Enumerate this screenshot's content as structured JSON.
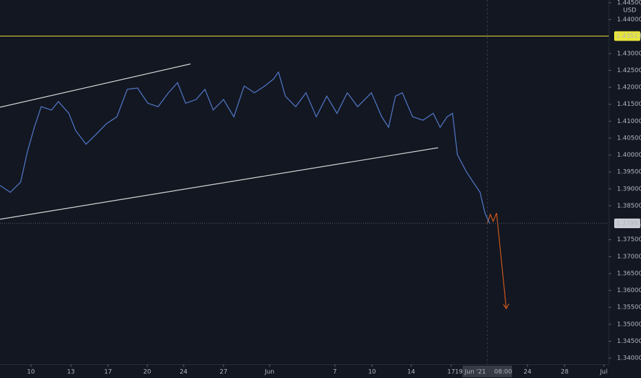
{
  "chart_data": {
    "type": "line",
    "currency": "USD",
    "x": [
      0,
      0.81,
      1.62,
      2.16,
      2.7,
      3.24,
      4.05,
      4.59,
      5.41,
      5.95,
      6.76,
      7.57,
      8.38,
      9.19,
      10.0,
      10.81,
      11.62,
      12.43,
      13.24,
      13.95,
      14.59,
      15.41,
      16.11,
      16.76,
      17.57,
      18.38,
      19.19,
      20.0,
      20.81,
      21.51,
      21.89,
      22.43,
      23.24,
      24.05,
      24.86,
      25.68,
      26.49,
      27.3,
      28.11,
      29.19,
      30.0,
      30.54,
      31.08,
      31.62,
      32.43,
      33.24,
      34.05,
      34.59,
      35.14,
      35.57,
      35.95,
      36.65,
      37.19,
      37.73,
      38.11,
      38.49
    ],
    "series": [
      {
        "color": "#4f75c2",
        "values": [
          1.391,
          1.389,
          1.392,
          1.4011,
          1.4082,
          1.4143,
          1.4133,
          1.4158,
          1.4123,
          1.4072,
          1.4032,
          1.4062,
          1.4093,
          1.4113,
          1.4194,
          1.4198,
          1.4153,
          1.4143,
          1.4184,
          1.4214,
          1.4153,
          1.4164,
          1.4194,
          1.4133,
          1.4164,
          1.4113,
          1.4204,
          1.4184,
          1.4204,
          1.4225,
          1.4245,
          1.4174,
          1.4143,
          1.4184,
          1.4113,
          1.4174,
          1.4123,
          1.4184,
          1.4143,
          1.4184,
          1.4113,
          1.4082,
          1.4174,
          1.4184,
          1.4113,
          1.4103,
          1.4123,
          1.4082,
          1.4113,
          1.4123,
          1.4001,
          1.3951,
          1.392,
          1.389,
          1.3829,
          1.3798
        ]
      }
    ],
    "xlim": [
      0,
      47.84
    ],
    "xticks": [
      {
        "value": 2.43,
        "label": "10"
      },
      {
        "value": 5.57,
        "label": "13"
      },
      {
        "value": 8.49,
        "label": "17"
      },
      {
        "value": 11.57,
        "label": "20"
      },
      {
        "value": 14.43,
        "label": "24"
      },
      {
        "value": 17.57,
        "label": "27"
      },
      {
        "value": 21.19,
        "label": "Jun"
      },
      {
        "value": 26.32,
        "label": "7"
      },
      {
        "value": 29.24,
        "label": "10"
      },
      {
        "value": 32.32,
        "label": "14"
      },
      {
        "value": 35.46,
        "label": "17"
      },
      {
        "value": 41.46,
        "label": "24"
      },
      {
        "value": 44.38,
        "label": "28"
      },
      {
        "value": 47.46,
        "label": "Jul"
      }
    ],
    "ylim": [
      1.3382,
      1.4458
    ],
    "yticks": [
      {
        "value": 1.34,
        "label": "1.34000"
      },
      {
        "value": 1.345,
        "label": "1.34500"
      },
      {
        "value": 1.35,
        "label": "1.35000"
      },
      {
        "value": 1.355,
        "label": "1.35500"
      },
      {
        "value": 1.36,
        "label": "1.36000"
      },
      {
        "value": 1.365,
        "label": "1.36500"
      },
      {
        "value": 1.37,
        "label": "1.37000"
      },
      {
        "value": 1.375,
        "label": "1.37500"
      },
      {
        "value": 1.385,
        "label": "1.38500"
      },
      {
        "value": 1.39,
        "label": "1.39000"
      },
      {
        "value": 1.395,
        "label": "1.39500"
      },
      {
        "value": 1.4,
        "label": "1.40000"
      },
      {
        "value": 1.405,
        "label": "1.40500"
      },
      {
        "value": 1.41,
        "label": "1.41000"
      },
      {
        "value": 1.415,
        "label": "1.41500"
      },
      {
        "value": 1.42,
        "label": "1.42000"
      },
      {
        "value": 1.425,
        "label": "1.42500"
      },
      {
        "value": 1.43,
        "label": "1.43000"
      },
      {
        "value": 1.44,
        "label": "1.44000"
      },
      {
        "value": 1.445,
        "label": "1.44500"
      }
    ],
    "price_line": {
      "value": 1.43513,
      "color": "#e8e53a"
    },
    "last_price": {
      "value": 1.37981,
      "color": "#c8cbd3"
    },
    "crosshair": {
      "value": 38.3,
      "date": "19 Jun '21",
      "time": "08:00"
    }
  }
}
